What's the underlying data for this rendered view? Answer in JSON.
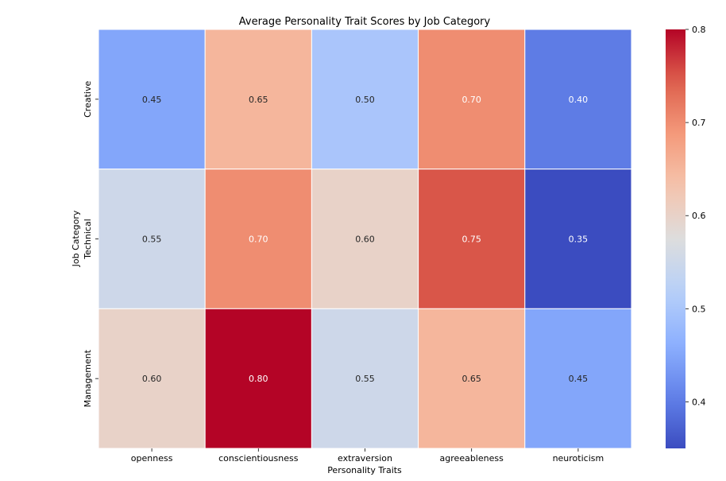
{
  "chart_data": {
    "type": "heatmap",
    "title": "Average Personality Trait Scores by Job Category",
    "xlabel": "Personality Traits",
    "ylabel": "Job Category",
    "x_categories": [
      "openness",
      "conscientiousness",
      "extraversion",
      "agreeableness",
      "neuroticism"
    ],
    "y_categories": [
      "Creative",
      "Technical",
      "Management"
    ],
    "values": [
      [
        0.45,
        0.65,
        0.5,
        0.7,
        0.4
      ],
      [
        0.55,
        0.7,
        0.6,
        0.75,
        0.35
      ],
      [
        0.6,
        0.8,
        0.55,
        0.65,
        0.45
      ]
    ],
    "value_labels": [
      [
        "0.45",
        "0.65",
        "0.50",
        "0.70",
        "0.40"
      ],
      [
        "0.55",
        "0.70",
        "0.60",
        "0.75",
        "0.35"
      ],
      [
        "0.60",
        "0.80",
        "0.55",
        "0.65",
        "0.45"
      ]
    ],
    "colormap": "coolwarm",
    "vmin": 0.35,
    "vmax": 0.8,
    "colorbar_ticks": [
      0.4,
      0.5,
      0.6,
      0.7,
      0.8
    ],
    "colorbar_tick_labels": [
      "0.4",
      "0.5",
      "0.6",
      "0.7",
      "0.8"
    ],
    "colors": {
      "cell_border": "#ffffff",
      "dark_text": "#262626",
      "light_text": "#ffffff"
    }
  }
}
